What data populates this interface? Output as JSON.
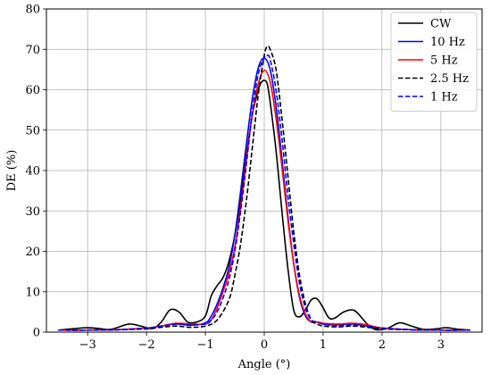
{
  "chart_data": {
    "type": "line",
    "xlabel": "Angle (°)",
    "ylabel": "DE (%)",
    "xlim": [
      -3.7,
      3.7
    ],
    "ylim": [
      0,
      80
    ],
    "xticks": [
      -3,
      -2,
      -1,
      0,
      1,
      2,
      3
    ],
    "xtick_labels": [
      "−3",
      "−2",
      "−1",
      "0",
      "1",
      "2",
      "3"
    ],
    "yticks": [
      0,
      10,
      20,
      30,
      40,
      50,
      60,
      70,
      80
    ],
    "ytick_labels": [
      "0",
      "10",
      "20",
      "30",
      "40",
      "50",
      "60",
      "70",
      "80"
    ],
    "grid": true,
    "legend_position": "top-right",
    "series": [
      {
        "name": "CW",
        "color": "#000000",
        "dash": "solid",
        "x": [
          -3.5,
          -3.2,
          -3.0,
          -2.8,
          -2.6,
          -2.3,
          -2.1,
          -1.9,
          -1.75,
          -1.6,
          -1.45,
          -1.3,
          -1.15,
          -1.0,
          -0.9,
          -0.8,
          -0.7,
          -0.6,
          -0.5,
          -0.4,
          -0.3,
          -0.2,
          -0.1,
          -0.05,
          0.0,
          0.05,
          0.1,
          0.2,
          0.3,
          0.4,
          0.5,
          0.6,
          0.7,
          0.8,
          0.9,
          1.0,
          1.1,
          1.2,
          1.35,
          1.5,
          1.6,
          1.75,
          1.9,
          2.1,
          2.3,
          2.5,
          2.7,
          2.9,
          3.1,
          3.3,
          3.5
        ],
        "y": [
          0.5,
          0.9,
          1.1,
          0.9,
          0.7,
          2.0,
          1.5,
          0.9,
          2.5,
          5.5,
          5.0,
          2.5,
          2.5,
          4.0,
          9.0,
          11.5,
          13.5,
          17.5,
          24.0,
          33.0,
          44.0,
          54.0,
          60.0,
          61.8,
          62.3,
          61.5,
          57.0,
          45.0,
          30.0,
          16.0,
          5.5,
          3.8,
          5.5,
          8.0,
          8.2,
          6.0,
          3.5,
          3.5,
          5.0,
          5.5,
          4.5,
          2.0,
          0.6,
          1.0,
          2.3,
          1.5,
          0.7,
          0.8,
          1.1,
          0.7,
          0.5
        ]
      },
      {
        "name": "10 Hz",
        "color": "#0000ff",
        "dash": "solid",
        "x": [
          -3.5,
          -3.0,
          -2.5,
          -2.0,
          -1.75,
          -1.5,
          -1.25,
          -1.0,
          -0.9,
          -0.8,
          -0.7,
          -0.6,
          -0.5,
          -0.4,
          -0.3,
          -0.2,
          -0.1,
          0.0,
          0.1,
          0.2,
          0.3,
          0.4,
          0.5,
          0.6,
          0.7,
          0.8,
          0.9,
          1.0,
          1.25,
          1.5,
          1.75,
          2.0,
          2.5,
          3.0,
          3.5
        ],
        "y": [
          0.5,
          0.5,
          0.6,
          1.0,
          1.5,
          2.0,
          1.7,
          2.3,
          4.0,
          7.0,
          11.0,
          16.0,
          24.0,
          35.0,
          47.0,
          58.0,
          65.5,
          67.8,
          65.0,
          56.0,
          43.0,
          29.0,
          17.0,
          8.5,
          4.0,
          2.5,
          2.5,
          2.0,
          1.8,
          2.0,
          1.5,
          1.0,
          0.6,
          0.5,
          0.5
        ]
      },
      {
        "name": "5 Hz",
        "color": "#ff0000",
        "dash": "solid",
        "x": [
          -3.5,
          -3.0,
          -2.5,
          -2.0,
          -1.75,
          -1.5,
          -1.25,
          -1.0,
          -0.9,
          -0.8,
          -0.7,
          -0.6,
          -0.5,
          -0.4,
          -0.3,
          -0.2,
          -0.1,
          0.0,
          0.1,
          0.2,
          0.3,
          0.4,
          0.5,
          0.6,
          0.7,
          0.8,
          0.9,
          1.0,
          1.25,
          1.5,
          1.75,
          2.0,
          2.5,
          3.0,
          3.5
        ],
        "y": [
          0.5,
          0.5,
          0.6,
          1.0,
          1.5,
          2.2,
          2.0,
          2.0,
          3.0,
          6.0,
          10.0,
          14.5,
          21.0,
          31.0,
          43.0,
          54.0,
          61.5,
          64.8,
          62.0,
          53.0,
          41.0,
          28.0,
          17.0,
          9.0,
          4.5,
          2.5,
          2.5,
          2.2,
          2.0,
          2.2,
          1.8,
          1.0,
          0.6,
          0.5,
          0.5
        ]
      },
      {
        "name": "2.5 Hz",
        "color": "#000000",
        "dash": "dashed",
        "x": [
          -3.5,
          -3.0,
          -2.5,
          -2.0,
          -1.75,
          -1.5,
          -1.25,
          -1.0,
          -0.8,
          -0.6,
          -0.5,
          -0.4,
          -0.3,
          -0.2,
          -0.1,
          0.0,
          0.05,
          0.1,
          0.2,
          0.3,
          0.4,
          0.5,
          0.6,
          0.7,
          0.8,
          0.9,
          1.0,
          1.25,
          1.5,
          1.75,
          2.0,
          2.5,
          3.0,
          3.5
        ],
        "y": [
          0.5,
          0.5,
          0.6,
          0.8,
          1.2,
          1.5,
          1.2,
          1.5,
          3.0,
          8.0,
          14.0,
          22.0,
          33.0,
          46.0,
          59.0,
          68.5,
          70.7,
          70.0,
          65.0,
          53.0,
          39.0,
          25.0,
          14.0,
          7.0,
          3.0,
          2.0,
          1.5,
          1.3,
          1.5,
          1.2,
          0.8,
          0.6,
          0.5,
          0.5
        ]
      },
      {
        "name": "1 Hz",
        "color": "#0000ff",
        "dash": "dashed",
        "x": [
          -3.5,
          -3.0,
          -2.5,
          -2.0,
          -1.75,
          -1.5,
          -1.25,
          -1.0,
          -0.9,
          -0.8,
          -0.7,
          -0.6,
          -0.5,
          -0.4,
          -0.3,
          -0.2,
          -0.1,
          0.0,
          0.05,
          0.1,
          0.2,
          0.3,
          0.4,
          0.5,
          0.6,
          0.7,
          0.8,
          0.9,
          1.0,
          1.25,
          1.5,
          1.75,
          2.0,
          2.5,
          3.0,
          3.5
        ],
        "y": [
          0.5,
          0.5,
          0.6,
          1.0,
          1.5,
          2.0,
          1.8,
          2.0,
          3.0,
          5.0,
          8.5,
          13.0,
          20.0,
          30.0,
          42.0,
          55.0,
          64.0,
          68.0,
          68.5,
          67.5,
          60.0,
          48.0,
          34.0,
          22.0,
          12.0,
          6.0,
          3.0,
          2.5,
          2.0,
          1.5,
          1.8,
          1.5,
          1.0,
          0.6,
          0.5,
          0.5
        ]
      }
    ]
  }
}
